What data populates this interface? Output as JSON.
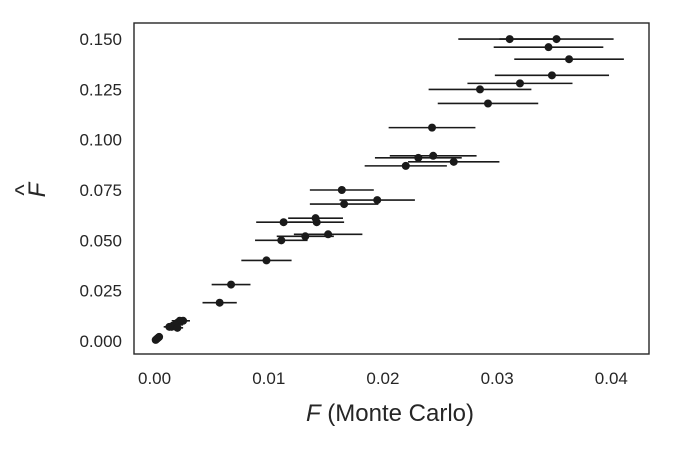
{
  "chart_data": {
    "type": "scatter",
    "title": "",
    "xlabel_var": "F",
    "xlabel_rest": " (Monte Carlo)",
    "ylabel_var": "F",
    "ylabel_accent": "^",
    "xlim": [
      -0.0018,
      0.0433
    ],
    "ylim": [
      -0.0065,
      0.158
    ],
    "grid": false,
    "legend": "none",
    "x_ticks": [
      0.0,
      0.01,
      0.02,
      0.03,
      0.04
    ],
    "x_tick_labels": [
      "0.00",
      "0.01",
      "0.02",
      "0.03",
      "0.04"
    ],
    "y_ticks": [
      0.0,
      0.025,
      0.05,
      0.075,
      0.1,
      0.125,
      0.15
    ],
    "y_tick_labels": [
      "0.000",
      "0.025",
      "0.050",
      "0.075",
      "0.100",
      "0.125",
      "0.150"
    ],
    "marker_color": "#1a1a1a",
    "errorbar_color": "#1a1a1a",
    "points": [
      {
        "x": 0.0311,
        "y": 0.15,
        "xerr": 0.0045
      },
      {
        "x": 0.0352,
        "y": 0.15,
        "xerr": 0.005
      },
      {
        "x": 0.0345,
        "y": 0.146,
        "xerr": 0.0048
      },
      {
        "x": 0.0363,
        "y": 0.14,
        "xerr": 0.0048
      },
      {
        "x": 0.0348,
        "y": 0.132,
        "xerr": 0.005
      },
      {
        "x": 0.032,
        "y": 0.128,
        "xerr": 0.0046
      },
      {
        "x": 0.0285,
        "y": 0.125,
        "xerr": 0.0045
      },
      {
        "x": 0.0292,
        "y": 0.118,
        "xerr": 0.0044
      },
      {
        "x": 0.0243,
        "y": 0.106,
        "xerr": 0.0038
      },
      {
        "x": 0.0231,
        "y": 0.091,
        "xerr": 0.0038
      },
      {
        "x": 0.0244,
        "y": 0.092,
        "xerr": 0.0038
      },
      {
        "x": 0.0262,
        "y": 0.089,
        "xerr": 0.004
      },
      {
        "x": 0.022,
        "y": 0.087,
        "xerr": 0.0036
      },
      {
        "x": 0.0164,
        "y": 0.075,
        "xerr": 0.0028
      },
      {
        "x": 0.0195,
        "y": 0.07,
        "xerr": 0.0033
      },
      {
        "x": 0.0166,
        "y": 0.068,
        "xerr": 0.003
      },
      {
        "x": 0.0141,
        "y": 0.061,
        "xerr": 0.0024
      },
      {
        "x": 0.0142,
        "y": 0.059,
        "xerr": 0.0024
      },
      {
        "x": 0.0113,
        "y": 0.059,
        "xerr": 0.0024
      },
      {
        "x": 0.0152,
        "y": 0.053,
        "xerr": 0.003
      },
      {
        "x": 0.0132,
        "y": 0.052,
        "xerr": 0.0025
      },
      {
        "x": 0.0111,
        "y": 0.05,
        "xerr": 0.0023
      },
      {
        "x": 0.0098,
        "y": 0.04,
        "xerr": 0.0022
      },
      {
        "x": 0.0067,
        "y": 0.028,
        "xerr": 0.0017
      },
      {
        "x": 0.0057,
        "y": 0.019,
        "xerr": 0.0015
      },
      {
        "x": 0.0025,
        "y": 0.01,
        "xerr": 0.0006
      },
      {
        "x": 0.0022,
        "y": 0.01,
        "xerr": 0.0007
      },
      {
        "x": 0.002,
        "y": 0.009,
        "xerr": 0.0006
      },
      {
        "x": 0.0018,
        "y": 0.008,
        "xerr": 0.0007
      },
      {
        "x": 0.0015,
        "y": 0.007,
        "xerr": 0.0006
      },
      {
        "x": 0.0013,
        "y": 0.007,
        "xerr": 0.0005
      },
      {
        "x": 0.002,
        "y": 0.0065,
        "xerr": 0.0005
      },
      {
        "x": 0.0004,
        "y": 0.002,
        "xerr": 0.0001
      },
      {
        "x": 0.0003,
        "y": 0.0015,
        "xerr": 0.0001
      },
      {
        "x": 0.0002,
        "y": 0.001,
        "xerr": 0.0001
      },
      {
        "x": 0.0001,
        "y": 0.0005,
        "xerr": 0.0001
      }
    ]
  }
}
